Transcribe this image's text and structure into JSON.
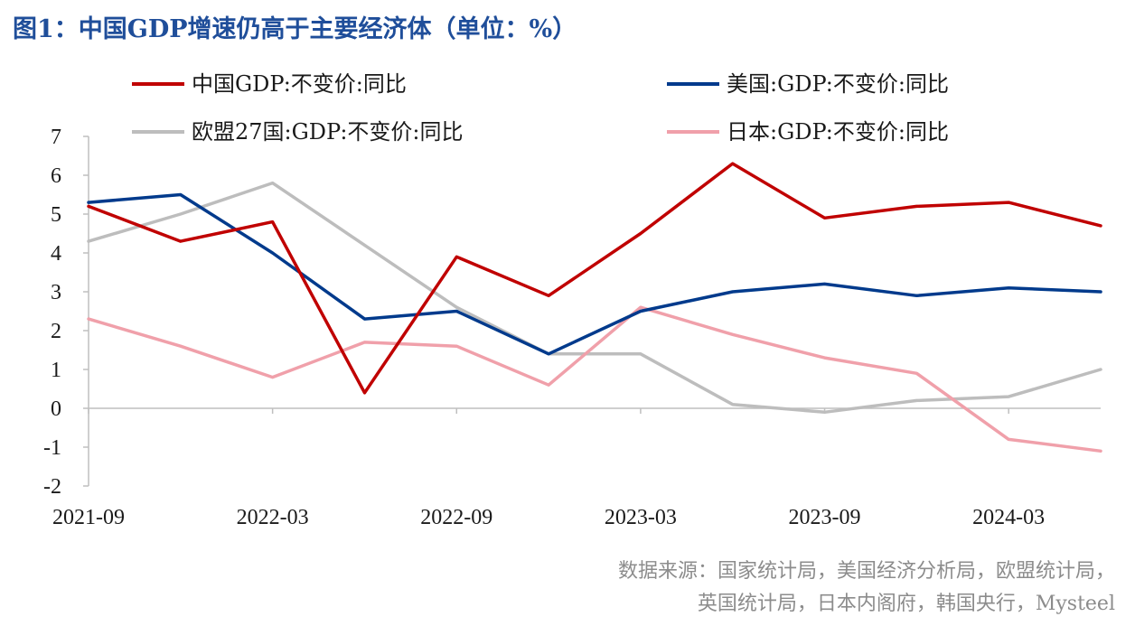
{
  "title": "图1：中国GDP增速仍高于主要经济体（单位：%）",
  "source": {
    "line1": "数据来源：国家统计局，美国经济分析局，欧盟统计局，",
    "line2": "英国统计局，日本内阁府，韩国央行，Mysteel"
  },
  "chart_data": {
    "type": "line",
    "title": "图1：中国GDP增速仍高于主要经济体（单位：%）",
    "x": [
      "2021-09",
      "2021-12",
      "2022-03",
      "2022-06",
      "2022-09",
      "2022-12",
      "2023-03",
      "2023-06",
      "2023-09",
      "2023-12",
      "2024-03",
      "2024-06"
    ],
    "x_tick_labels": [
      "2021-09",
      "2022-03",
      "2022-09",
      "2023-03",
      "2023-09",
      "2024-03"
    ],
    "ylim": [
      -2,
      7
    ],
    "y_ticks": [
      -2,
      -1,
      0,
      1,
      2,
      3,
      4,
      5,
      6,
      7
    ],
    "grid": false,
    "legend_position": "top",
    "series": [
      {
        "name": "中国GDP:不变价:同比",
        "color": "#c00000",
        "values": [
          5.2,
          4.3,
          4.8,
          0.4,
          3.9,
          2.9,
          4.5,
          6.3,
          4.9,
          5.2,
          5.3,
          4.7
        ]
      },
      {
        "name": "美国:GDP:不变价:同比",
        "color": "#003a8c",
        "values": [
          5.3,
          5.5,
          4.0,
          2.3,
          2.5,
          1.4,
          2.5,
          3.0,
          3.2,
          2.9,
          3.1,
          3.0
        ]
      },
      {
        "name": "欧盟27国:GDP:不变价:同比",
        "color": "#bdbdbd",
        "values": [
          4.3,
          5.0,
          5.8,
          4.2,
          2.6,
          1.4,
          1.4,
          0.1,
          -0.1,
          0.2,
          0.3,
          1.0
        ]
      },
      {
        "name": "日本:GDP:不变价:同比",
        "color": "#f0a0aa",
        "values": [
          2.3,
          1.6,
          0.8,
          1.7,
          1.6,
          0.6,
          2.6,
          1.9,
          1.3,
          0.9,
          -0.8,
          -1.1
        ]
      }
    ]
  }
}
